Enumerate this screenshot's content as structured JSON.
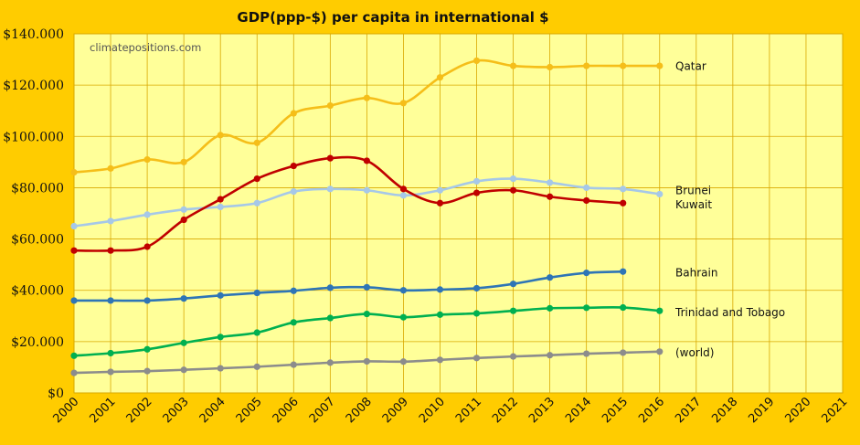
{
  "chart_data": {
    "type": "line",
    "title": "GDP(ppp-$) per capita in international $",
    "watermark": "climatepositions.com",
    "x": [
      2000,
      2001,
      2002,
      2003,
      2004,
      2005,
      2006,
      2007,
      2008,
      2009,
      2010,
      2011,
      2012,
      2013,
      2014,
      2015,
      2016,
      2017,
      2018,
      2019,
      2020,
      2021
    ],
    "xlim": [
      2000,
      2021
    ],
    "ylim": [
      0,
      140000
    ],
    "yticks": [
      0,
      20000,
      40000,
      60000,
      80000,
      100000,
      120000,
      140000
    ],
    "ytick_labels": [
      "$0",
      "$20.000",
      "$40.000",
      "$60.000",
      "$80.000",
      "$100.000",
      "$120.000",
      "$140.000"
    ],
    "grid": true,
    "series": [
      {
        "name": "Qatar",
        "color": "#F5BE19",
        "x": [
          2000,
          2001,
          2002,
          2003,
          2004,
          2005,
          2006,
          2007,
          2008,
          2009,
          2010,
          2011,
          2012,
          2013,
          2014,
          2015,
          2016
        ],
        "values": [
          86000,
          87500,
          91000,
          90000,
          100500,
          97500,
          109000,
          112000,
          115000,
          113000,
          123000,
          129500,
          127500,
          127000,
          127500,
          127500,
          127500
        ]
      },
      {
        "name": "Brunei",
        "color": "#A6C8E8",
        "x": [
          2000,
          2001,
          2002,
          2003,
          2004,
          2005,
          2006,
          2007,
          2008,
          2009,
          2010,
          2011,
          2012,
          2013,
          2014,
          2015,
          2016
        ],
        "values": [
          65000,
          67000,
          69500,
          71500,
          72500,
          74000,
          78500,
          79500,
          79000,
          77000,
          79000,
          82500,
          83500,
          82000,
          80000,
          79500,
          77500
        ]
      },
      {
        "name": "Kuwait",
        "color": "#C00000",
        "x": [
          2000,
          2001,
          2002,
          2003,
          2004,
          2005,
          2006,
          2007,
          2008,
          2009,
          2010,
          2011,
          2012,
          2013,
          2014,
          2015
        ],
        "values": [
          55500,
          55500,
          57000,
          67500,
          75500,
          83500,
          88500,
          91500,
          90500,
          79500,
          74000,
          78000,
          79000,
          76500,
          75000,
          74000
        ]
      },
      {
        "name": "Bahrain",
        "color": "#2E75B6",
        "x": [
          2000,
          2001,
          2002,
          2003,
          2004,
          2005,
          2006,
          2007,
          2008,
          2009,
          2010,
          2011,
          2012,
          2013,
          2014,
          2015
        ],
        "values": [
          36000,
          36000,
          36000,
          36800,
          38000,
          39000,
          39800,
          41000,
          41200,
          40000,
          40300,
          40800,
          42500,
          45000,
          46800,
          47300
        ]
      },
      {
        "name": "Trinidad and Tobago",
        "color": "#00B050",
        "x": [
          2000,
          2001,
          2002,
          2003,
          2004,
          2005,
          2006,
          2007,
          2008,
          2009,
          2010,
          2011,
          2012,
          2013,
          2014,
          2015,
          2016
        ],
        "values": [
          14500,
          15500,
          17000,
          19500,
          21800,
          23500,
          27500,
          29200,
          30800,
          29500,
          30500,
          31000,
          32000,
          33000,
          33200,
          33300,
          32000
        ]
      },
      {
        "name": "(world)",
        "color": "#8C8C8C",
        "x": [
          2000,
          2001,
          2002,
          2003,
          2004,
          2005,
          2006,
          2007,
          2008,
          2009,
          2010,
          2011,
          2012,
          2013,
          2014,
          2015,
          2016
        ],
        "values": [
          7800,
          8200,
          8500,
          9000,
          9600,
          10200,
          11000,
          11800,
          12300,
          12200,
          12900,
          13600,
          14200,
          14700,
          15300,
          15700,
          16100
        ]
      }
    ],
    "labels": [
      {
        "text": "Qatar",
        "series": "Qatar",
        "y": 127500
      },
      {
        "text": "Brunei",
        "series": "Brunei",
        "y": 79000
      },
      {
        "text": "Kuwait",
        "series": "Kuwait",
        "y": 73500
      },
      {
        "text": "Bahrain",
        "series": "Bahrain",
        "y": 47000
      },
      {
        "text": "Trinidad and Tobago",
        "series": "Trinidad and Tobago",
        "y": 31500
      },
      {
        "text": "(world)",
        "series": "(world)",
        "y": 15800
      }
    ]
  }
}
